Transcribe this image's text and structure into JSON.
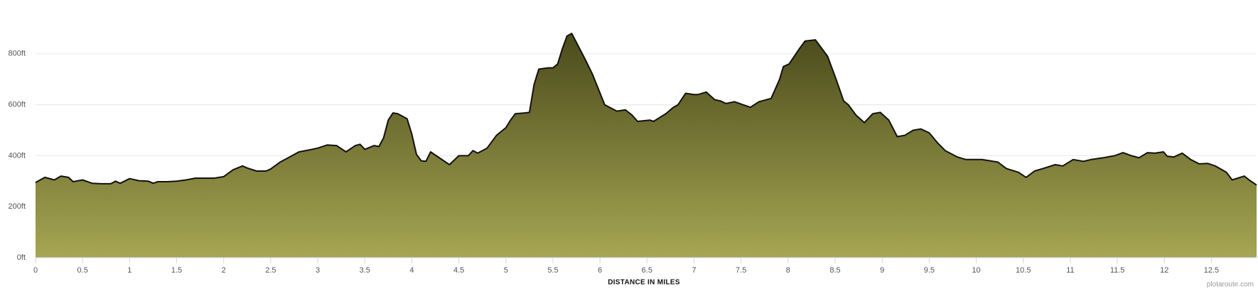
{
  "chart_data": {
    "type": "area",
    "x_axis_title": "DISTANCE IN MILES",
    "credit": "plotaroute.com",
    "color": "#a6a653",
    "color_top": "#4b4a1b",
    "line_color": "#111111",
    "grid": true,
    "xlim": [
      0,
      12.98
    ],
    "ylim": [
      0,
      950
    ],
    "xticks": [
      0,
      0.5,
      1,
      1.5,
      2,
      2.5,
      3,
      3.5,
      4,
      4.5,
      5,
      5.5,
      6,
      6.5,
      7,
      7.5,
      8,
      8.5,
      9,
      9.5,
      10,
      10.5,
      11,
      11.5,
      12,
      12.5
    ],
    "yticks": [
      {
        "value": 0,
        "label": "0ft"
      },
      {
        "value": 200,
        "label": "200ft"
      },
      {
        "value": 400,
        "label": "400ft"
      },
      {
        "value": 600,
        "label": "600ft"
      },
      {
        "value": 800,
        "label": "800ft"
      }
    ],
    "x": [
      0,
      0.1,
      0.2,
      0.27,
      0.35,
      0.4,
      0.5,
      0.6,
      0.7,
      0.8,
      0.85,
      0.9,
      1.0,
      1.1,
      1.2,
      1.25,
      1.3,
      1.4,
      1.5,
      1.6,
      1.7,
      1.8,
      1.9,
      2.0,
      2.1,
      2.2,
      2.25,
      2.35,
      2.45,
      2.5,
      2.6,
      2.7,
      2.8,
      2.9,
      3.0,
      3.1,
      3.2,
      3.3,
      3.4,
      3.45,
      3.5,
      3.6,
      3.65,
      3.7,
      3.75,
      3.8,
      3.85,
      3.9,
      3.95,
      4.0,
      4.05,
      4.1,
      4.15,
      4.2,
      4.3,
      4.4,
      4.5,
      4.6,
      4.65,
      4.7,
      4.8,
      4.9,
      5.0,
      5.05,
      5.1,
      5.2,
      5.25,
      5.3,
      5.35,
      5.45,
      5.5,
      5.55,
      5.6,
      5.65,
      5.7,
      5.84,
      5.92,
      6.05,
      6.18,
      6.27,
      6.34,
      6.4,
      6.53,
      6.57,
      6.7,
      6.78,
      6.83,
      6.91,
      7.0,
      7.04,
      7.13,
      7.22,
      7.28,
      7.34,
      7.43,
      7.52,
      7.6,
      7.69,
      7.82,
      7.91,
      7.95,
      8.01,
      8.12,
      8.18,
      8.29,
      8.34,
      8.42,
      8.51,
      8.59,
      8.64,
      8.72,
      8.81,
      8.9,
      8.98,
      9.07,
      9.16,
      9.24,
      9.33,
      9.41,
      9.5,
      9.59,
      9.67,
      9.8,
      9.89,
      9.97,
      10.06,
      10.15,
      10.23,
      10.32,
      10.45,
      10.53,
      10.62,
      10.71,
      10.84,
      10.92,
      11.03,
      11.14,
      11.22,
      11.35,
      11.47,
      11.56,
      11.65,
      11.73,
      11.82,
      11.9,
      11.99,
      12.03,
      12.1,
      12.19,
      12.28,
      12.37,
      12.46,
      12.54,
      12.66,
      12.72,
      12.85,
      12.9,
      12.98
    ],
    "values": [
      295,
      315,
      305,
      320,
      315,
      298,
      305,
      292,
      290,
      290,
      300,
      292,
      310,
      302,
      300,
      292,
      298,
      298,
      300,
      305,
      312,
      312,
      312,
      318,
      345,
      360,
      352,
      340,
      340,
      348,
      375,
      395,
      415,
      422,
      430,
      442,
      440,
      415,
      440,
      445,
      425,
      440,
      436,
      470,
      540,
      568,
      565,
      555,
      545,
      485,
      405,
      380,
      378,
      415,
      390,
      365,
      400,
      400,
      420,
      410,
      430,
      480,
      510,
      540,
      565,
      568,
      570,
      680,
      740,
      745,
      745,
      760,
      820,
      870,
      880,
      780,
      720,
      600,
      575,
      580,
      560,
      535,
      540,
      535,
      565,
      590,
      600,
      645,
      640,
      640,
      650,
      620,
      615,
      605,
      612,
      600,
      590,
      612,
      625,
      700,
      750,
      760,
      820,
      850,
      855,
      830,
      790,
      700,
      615,
      600,
      560,
      530,
      565,
      570,
      540,
      475,
      480,
      500,
      505,
      490,
      450,
      420,
      395,
      385,
      385,
      385,
      380,
      375,
      350,
      335,
      315,
      340,
      350,
      365,
      360,
      385,
      378,
      385,
      392,
      400,
      412,
      400,
      392,
      412,
      410,
      415,
      398,
      395,
      410,
      385,
      368,
      370,
      360,
      335,
      305,
      320,
      305,
      285
    ]
  }
}
